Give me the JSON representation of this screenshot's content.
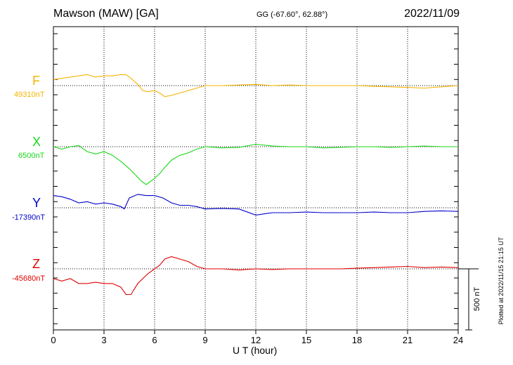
{
  "header": {
    "station": "Mawson (MAW)  [GA]",
    "coords": "GG (-67.60°,  62.88°)",
    "date": "2022/11/09"
  },
  "components": [
    {
      "letter": "F",
      "base": "49310nT",
      "color": "#f5b400"
    },
    {
      "letter": "X",
      "base": "6500nT",
      "color": "#19d819"
    },
    {
      "letter": "Y",
      "base": "-17390nT",
      "color": "#0000cc"
    },
    {
      "letter": "Z",
      "base": "-45680nT",
      "color": "#e00000"
    }
  ],
  "scale_label": "500 nT",
  "plotted_note": "Plotted at 2022/11/15 21:15 UT",
  "chart_data": {
    "type": "line",
    "xlabel": "U T (hour)",
    "xlim": [
      0,
      24
    ],
    "xticks": [
      0,
      3,
      6,
      9,
      12,
      15,
      18,
      21,
      24
    ],
    "tick_labels": [
      "0",
      "3",
      "6",
      "9",
      "12",
      "15",
      "18",
      "21",
      "24"
    ],
    "units": "nT",
    "scale_bar_nT": 500,
    "grid": true,
    "series": [
      {
        "name": "F",
        "baseline_nT": 49310,
        "x": [
          0,
          0.5,
          1,
          1.5,
          2,
          2.5,
          3,
          3.5,
          4,
          4.3,
          4.6,
          5,
          5.3,
          5.6,
          6,
          6.3,
          6.6,
          7,
          7.5,
          8,
          8.5,
          9,
          10,
          11,
          12,
          13,
          14,
          15,
          16,
          17,
          18,
          19,
          20,
          21,
          22,
          23,
          24
        ],
        "y": [
          50,
          60,
          70,
          80,
          90,
          70,
          80,
          80,
          90,
          90,
          60,
          10,
          -40,
          -50,
          -40,
          -60,
          -90,
          -80,
          -60,
          -40,
          -20,
          0,
          0,
          5,
          10,
          0,
          5,
          0,
          0,
          0,
          0,
          -5,
          -10,
          -15,
          -20,
          -10,
          0
        ]
      },
      {
        "name": "X",
        "baseline_nT": 6500,
        "x": [
          0,
          0.5,
          1,
          1.5,
          2,
          2.5,
          3,
          3.5,
          4,
          4.5,
          5,
          5.2,
          5.5,
          5.7,
          6,
          6.3,
          6.6,
          7,
          7.5,
          8,
          8.5,
          9,
          10,
          11,
          12,
          13,
          14,
          15,
          16,
          17,
          18,
          19,
          20,
          21,
          22,
          23,
          24
        ],
        "y": [
          0,
          -20,
          0,
          10,
          -40,
          -60,
          -40,
          -70,
          -120,
          -180,
          -250,
          -280,
          -310,
          -290,
          -260,
          -220,
          -170,
          -110,
          -70,
          -50,
          -20,
          0,
          -10,
          -5,
          20,
          5,
          0,
          0,
          -10,
          -5,
          0,
          0,
          -5,
          0,
          5,
          0,
          0
        ]
      },
      {
        "name": "Y",
        "baseline_nT": -17390,
        "x": [
          0,
          0.5,
          1,
          1.5,
          2,
          2.5,
          3,
          3.5,
          4,
          4.2,
          4.5,
          5,
          5.5,
          6,
          6.5,
          7,
          7.5,
          8,
          8.5,
          9,
          10,
          11,
          12,
          13,
          14,
          15,
          16,
          17,
          18,
          19,
          20,
          21,
          22,
          23,
          24
        ],
        "y": [
          100,
          90,
          70,
          40,
          50,
          30,
          40,
          30,
          10,
          -10,
          80,
          110,
          100,
          100,
          80,
          40,
          20,
          20,
          10,
          -10,
          -5,
          -10,
          -60,
          -40,
          -40,
          -35,
          -40,
          -40,
          -40,
          -35,
          -40,
          -40,
          -30,
          -25,
          -30
        ]
      },
      {
        "name": "Z",
        "baseline_nT": -45680,
        "x": [
          0,
          0.5,
          1,
          1.5,
          2,
          2.5,
          3,
          3.5,
          4,
          4.3,
          4.6,
          5,
          5.3,
          5.6,
          6,
          6.3,
          6.6,
          7,
          7.5,
          8,
          8.5,
          9,
          10,
          11,
          12,
          13,
          14,
          15,
          16,
          17,
          18,
          19,
          20,
          21,
          22,
          23,
          24
        ],
        "y": [
          -80,
          -100,
          -80,
          -120,
          -120,
          -110,
          -120,
          -120,
          -150,
          -210,
          -210,
          -120,
          -80,
          -40,
          0,
          30,
          80,
          100,
          80,
          60,
          20,
          0,
          0,
          -10,
          0,
          -5,
          0,
          0,
          0,
          0,
          5,
          10,
          15,
          20,
          10,
          15,
          10
        ]
      }
    ]
  }
}
